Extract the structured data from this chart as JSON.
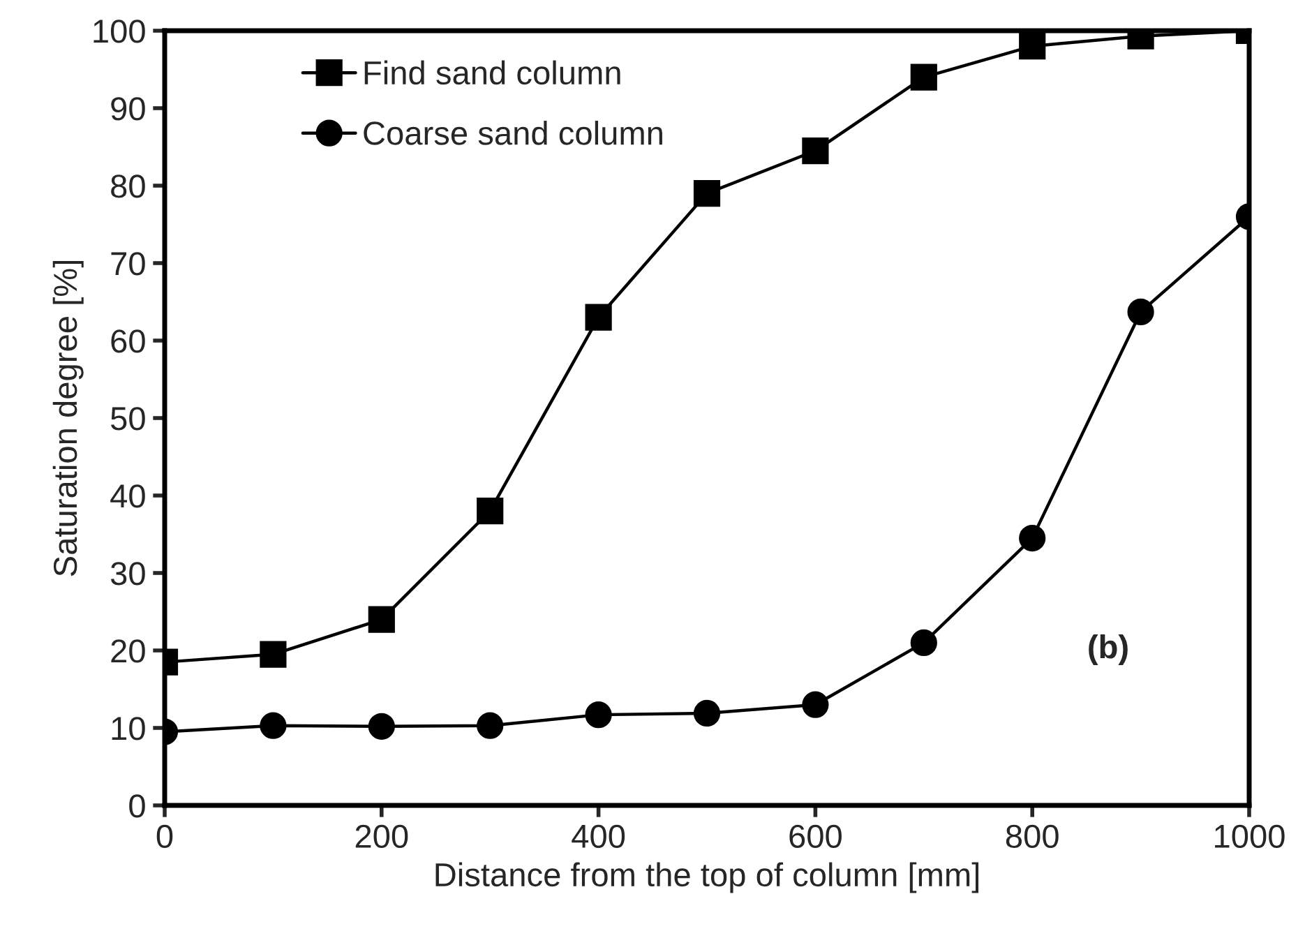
{
  "chart_data": {
    "type": "line",
    "xlabel": "Distance from the top of column [mm]",
    "ylabel": "Saturation degree [%]",
    "x": [
      0,
      100,
      200,
      300,
      400,
      500,
      600,
      700,
      800,
      900,
      1000
    ],
    "series": [
      {
        "name": "Find sand column",
        "color": "#000000",
        "marker": "square",
        "values": [
          18.5,
          19.5,
          24,
          38,
          63,
          79,
          84.5,
          94,
          98,
          99.3,
          100
        ]
      },
      {
        "name": "Coarse sand column",
        "color": "#000000",
        "marker": "circle",
        "values": [
          9.5,
          10.3,
          10.2,
          10.3,
          11.7,
          11.9,
          13,
          21,
          34.5,
          63.7,
          76
        ]
      }
    ],
    "xlim": [
      0,
      1000
    ],
    "xticks": [
      0,
      200,
      400,
      600,
      800,
      1000
    ],
    "ylim": [
      0,
      100
    ],
    "yticks": [
      0,
      10,
      20,
      30,
      40,
      50,
      60,
      70,
      80,
      90,
      100
    ],
    "grid": false,
    "legend": "top left",
    "line_style": "solid",
    "annotations": [
      "(b)"
    ]
  }
}
